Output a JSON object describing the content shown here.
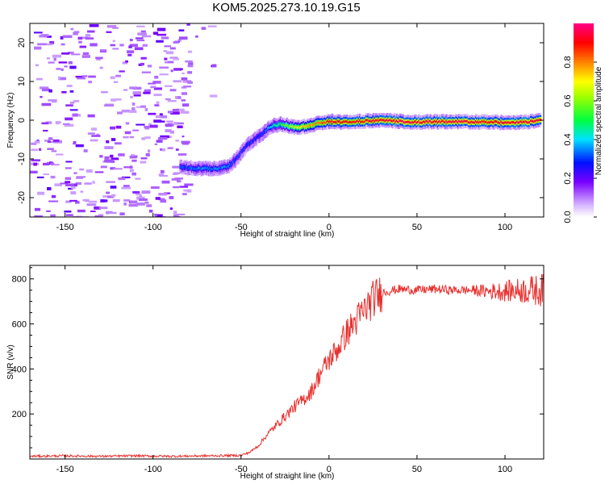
{
  "figure": {
    "title": "KOM5.2025.273.10.19.G15"
  },
  "chart_data": [
    {
      "type": "heatmap",
      "title": "KOM5.2025.273.10.19.G15",
      "xlabel": "Height of straight line (km)",
      "ylabel": "Frequency (Hz)",
      "xlim": [
        -170,
        122
      ],
      "ylim": [
        -25,
        25
      ],
      "xticks": [
        -150,
        -100,
        -50,
        0,
        50,
        100
      ],
      "yticks": [
        -20,
        -10,
        0,
        10,
        20
      ],
      "colorbar": {
        "label": "Normalized spectral amplitude",
        "range": [
          0,
          1
        ],
        "ticks": [
          0.0,
          0.2,
          0.4,
          0.6,
          0.8
        ],
        "colormap": "rainbow (purple to magenta)"
      },
      "ridge": {
        "description": "Dominant signal frequency vs height",
        "x": [
          -85,
          -75,
          -65,
          -58,
          -53,
          -48,
          -43,
          -38,
          -33,
          -28,
          -23,
          -18,
          -13,
          -8,
          -3,
          0,
          10,
          20,
          30,
          40,
          50,
          60,
          70,
          80,
          90,
          100,
          110,
          120
        ],
        "y": [
          -12,
          -12.5,
          -12.5,
          -12,
          -10,
          -7,
          -5,
          -3.5,
          -1.5,
          -1,
          -1.5,
          -2,
          -1.5,
          -1,
          -0.5,
          -0.3,
          -0.5,
          -0.2,
          0,
          -0.3,
          -0.5,
          -0.4,
          -0.4,
          -0.4,
          -0.5,
          -0.6,
          -0.5,
          0
        ],
        "amplitude": [
          0.3,
          0.35,
          0.35,
          0.35,
          0.3,
          0.3,
          0.3,
          0.3,
          0.4,
          0.5,
          0.6,
          0.7,
          0.75,
          0.8,
          0.85,
          0.9,
          0.9,
          0.9,
          0.92,
          0.95,
          0.93,
          0.93,
          0.95,
          0.93,
          0.9,
          0.92,
          0.93,
          0.93
        ]
      },
      "noise_region_x": [
        -170,
        -80
      ]
    },
    {
      "type": "line",
      "xlabel": "Height of straight line (km)",
      "ylabel": "SNR (v/v)",
      "xlim": [
        -170,
        122
      ],
      "ylim": [
        0,
        860
      ],
      "xticks": [
        -150,
        -100,
        -50,
        0,
        50,
        100
      ],
      "yticks": [
        200,
        400,
        600,
        800
      ],
      "series": [
        {
          "name": "SNR",
          "color": "#e8302e",
          "x": [
            -170,
            -150,
            -130,
            -110,
            -90,
            -70,
            -60,
            -50,
            -45,
            -40,
            -35,
            -30,
            -25,
            -20,
            -15,
            -10,
            -5,
            0,
            5,
            10,
            15,
            20,
            25,
            30,
            40,
            50,
            60,
            70,
            80,
            90,
            100,
            110,
            120
          ],
          "y": [
            12,
            14,
            12,
            14,
            12,
            14,
            15,
            16,
            30,
            60,
            110,
            150,
            190,
            230,
            260,
            300,
            380,
            440,
            490,
            560,
            610,
            660,
            710,
            740,
            755,
            750,
            755,
            750,
            750,
            745,
            745,
            750,
            750
          ]
        }
      ]
    }
  ]
}
